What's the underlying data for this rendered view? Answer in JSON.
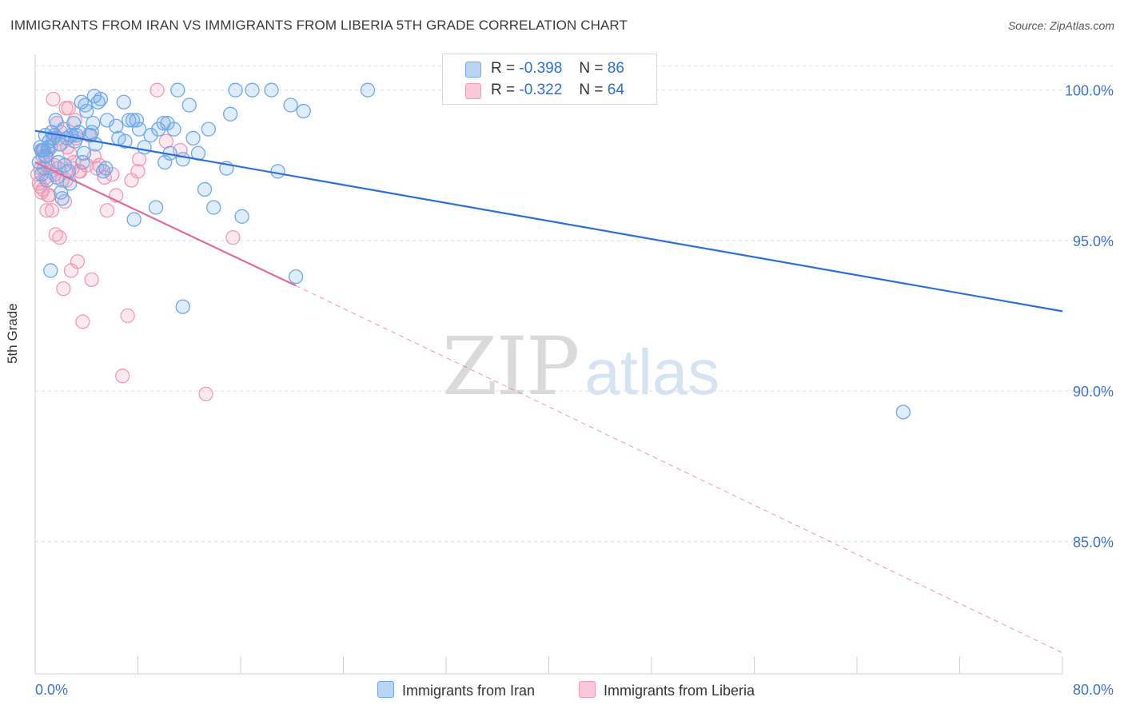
{
  "title": "IMMIGRANTS FROM IRAN VS IMMIGRANTS FROM LIBERIA 5TH GRADE CORRELATION CHART",
  "source": "Source: ZipAtlas.com",
  "watermark": {
    "zip": "ZIP",
    "atlas": "atlas"
  },
  "legend": {
    "iran": {
      "r_label": "R =",
      "r_value": "-0.398",
      "n_label": "N =",
      "n_value": "86"
    },
    "liberia": {
      "r_label": "R =",
      "r_value": "-0.322",
      "n_label": "N =",
      "n_value": "64"
    }
  },
  "colors": {
    "iran": "#6fa8e8",
    "iran_line": "#2a6fd6",
    "liberia": "#f19ab5",
    "liberia_line": "#e06b96",
    "axis_text": "#3d73c9"
  },
  "chart_data": {
    "type": "scatter",
    "title": "IMMIGRANTS FROM IRAN VS IMMIGRANTS FROM LIBERIA 5TH GRADE CORRELATION CHART",
    "xlabel": "",
    "ylabel": "5th Grade",
    "xlim": [
      0,
      80
    ],
    "ylim": [
      80.6,
      101.4
    ],
    "x_tick_labels": [
      "0.0%",
      "80.0%"
    ],
    "y_ticks": [
      85,
      90,
      95,
      100
    ],
    "y_tick_labels": [
      "85.0%",
      "90.0%",
      "95.0%",
      "100.0%"
    ],
    "grid": true,
    "series": [
      {
        "name": "Immigrants from Iran",
        "trend": {
          "x0": 0,
          "y0": 98.65,
          "x1": 80,
          "y1": 92.65
        },
        "points": [
          [
            0.3,
            97.6
          ],
          [
            0.4,
            98.1
          ],
          [
            0.5,
            97.2
          ],
          [
            0.6,
            98.0
          ],
          [
            0.7,
            97.4
          ],
          [
            0.8,
            98.5
          ],
          [
            0.9,
            97.0
          ],
          [
            1.0,
            98.1
          ],
          [
            1.1,
            98.3
          ],
          [
            1.2,
            94.0
          ],
          [
            1.3,
            98.6
          ],
          [
            1.4,
            98.4
          ],
          [
            1.5,
            98.5
          ],
          [
            1.6,
            99.0
          ],
          [
            1.8,
            97.6
          ],
          [
            1.9,
            98.2
          ],
          [
            2.0,
            96.6
          ],
          [
            2.1,
            96.4
          ],
          [
            2.3,
            97.5
          ],
          [
            2.5,
            98.4
          ],
          [
            2.6,
            97.3
          ],
          [
            2.8,
            98.5
          ],
          [
            3.0,
            98.9
          ],
          [
            3.2,
            98.5
          ],
          [
            3.4,
            98.6
          ],
          [
            3.6,
            99.6
          ],
          [
            3.8,
            97.9
          ],
          [
            3.9,
            99.5
          ],
          [
            4.0,
            99.3
          ],
          [
            4.3,
            98.5
          ],
          [
            4.4,
            98.6
          ],
          [
            4.6,
            99.8
          ],
          [
            4.7,
            98.2
          ],
          [
            4.9,
            99.6
          ],
          [
            5.1,
            99.7
          ],
          [
            5.3,
            97.3
          ],
          [
            5.5,
            97.4
          ],
          [
            6.3,
            98.8
          ],
          [
            6.9,
            99.6
          ],
          [
            7.0,
            98.3
          ],
          [
            7.3,
            99.0
          ],
          [
            7.6,
            99.0
          ],
          [
            7.7,
            95.7
          ],
          [
            7.9,
            99.0
          ],
          [
            8.1,
            98.7
          ],
          [
            8.5,
            98.1
          ],
          [
            9.4,
            96.1
          ],
          [
            9.6,
            98.7
          ],
          [
            10.0,
            98.9
          ],
          [
            10.1,
            97.6
          ],
          [
            10.3,
            98.9
          ],
          [
            10.8,
            98.7
          ],
          [
            11.1,
            100.0
          ],
          [
            11.5,
            97.7
          ],
          [
            11.5,
            92.8
          ],
          [
            12.0,
            99.5
          ],
          [
            12.7,
            97.9
          ],
          [
            13.2,
            96.7
          ],
          [
            13.5,
            98.7
          ],
          [
            13.9,
            96.1
          ],
          [
            14.9,
            97.4
          ],
          [
            15.2,
            99.2
          ],
          [
            15.6,
            100.0
          ],
          [
            16.1,
            95.8
          ],
          [
            16.9,
            100.0
          ],
          [
            18.4,
            100.0
          ],
          [
            18.9,
            97.3
          ],
          [
            19.9,
            99.5
          ],
          [
            20.3,
            93.8
          ],
          [
            20.9,
            99.3
          ],
          [
            25.9,
            100.0
          ],
          [
            67.6,
            89.3
          ],
          [
            0.5,
            98.0
          ],
          [
            0.8,
            97.8
          ],
          [
            1.0,
            98.0
          ],
          [
            2.2,
            98.7
          ],
          [
            3.1,
            98.3
          ],
          [
            4.5,
            98.9
          ],
          [
            5.6,
            99.0
          ],
          [
            6.5,
            98.4
          ],
          [
            9.0,
            98.5
          ],
          [
            10.5,
            97.9
          ],
          [
            12.3,
            98.4
          ],
          [
            1.7,
            97.1
          ],
          [
            2.7,
            96.9
          ],
          [
            3.7,
            97.6
          ]
        ]
      },
      {
        "name": "Immigrants from Liberia",
        "trend": {
          "x0": 0,
          "y0": 97.6,
          "x1": 20.3,
          "y1": 93.5
        },
        "trend_ext": {
          "x0": 20.3,
          "y0": 93.5,
          "x1": 80,
          "y1": 81.3
        },
        "points": [
          [
            0.2,
            97.2
          ],
          [
            0.3,
            96.9
          ],
          [
            0.4,
            97.4
          ],
          [
            0.5,
            96.6
          ],
          [
            0.6,
            97.8
          ],
          [
            0.7,
            98.0
          ],
          [
            0.8,
            97.1
          ],
          [
            0.9,
            96.0
          ],
          [
            1.0,
            97.5
          ],
          [
            1.1,
            96.5
          ],
          [
            1.2,
            98.1
          ],
          [
            1.3,
            96.0
          ],
          [
            1.4,
            99.7
          ],
          [
            1.5,
            97.2
          ],
          [
            1.6,
            95.2
          ],
          [
            1.7,
            98.9
          ],
          [
            1.8,
            98.4
          ],
          [
            1.9,
            95.1
          ],
          [
            2.0,
            98.6
          ],
          [
            2.1,
            97.0
          ],
          [
            2.2,
            93.4
          ],
          [
            2.3,
            96.3
          ],
          [
            2.4,
            99.4
          ],
          [
            2.5,
            98.1
          ],
          [
            2.6,
            99.4
          ],
          [
            2.8,
            94.0
          ],
          [
            2.9,
            97.4
          ],
          [
            3.0,
            97.6
          ],
          [
            3.1,
            99.0
          ],
          [
            3.3,
            94.3
          ],
          [
            3.5,
            97.3
          ],
          [
            3.7,
            92.3
          ],
          [
            4.0,
            97.5
          ],
          [
            4.2,
            98.5
          ],
          [
            4.4,
            93.7
          ],
          [
            4.6,
            97.8
          ],
          [
            5.0,
            97.5
          ],
          [
            5.6,
            96.0
          ],
          [
            6.0,
            97.2
          ],
          [
            6.8,
            90.5
          ],
          [
            7.2,
            92.5
          ],
          [
            7.5,
            97.0
          ],
          [
            8.0,
            97.3
          ],
          [
            8.1,
            97.7
          ],
          [
            9.5,
            100.0
          ],
          [
            10.2,
            98.3
          ],
          [
            11.3,
            98.0
          ],
          [
            13.3,
            89.9
          ],
          [
            15.4,
            95.1
          ],
          [
            0.6,
            96.7
          ],
          [
            1.0,
            96.5
          ],
          [
            1.5,
            97.5
          ],
          [
            2.0,
            98.2
          ],
          [
            2.7,
            97.9
          ],
          [
            3.4,
            97.3
          ],
          [
            0.4,
            96.8
          ],
          [
            1.2,
            97.3
          ],
          [
            1.8,
            97.4
          ],
          [
            2.4,
            97.0
          ],
          [
            3.2,
            98.4
          ],
          [
            4.8,
            97.4
          ],
          [
            5.4,
            97.1
          ],
          [
            6.3,
            96.5
          ],
          [
            0.9,
            97.8
          ]
        ]
      }
    ]
  },
  "bottom_legend": {
    "iran_label": "Immigrants from Iran",
    "liberia_label": "Immigrants from Liberia"
  }
}
